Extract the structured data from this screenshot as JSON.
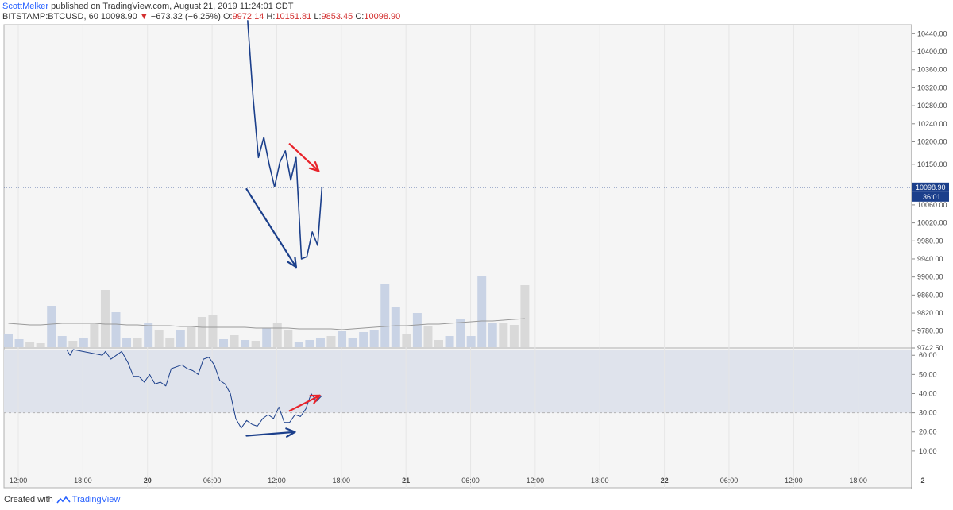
{
  "header": {
    "author": "ScottMelker",
    "published": " published on TradingView.com, August 21, 2019 11:24:01 CDT",
    "symbol": "BITSTAMP:BTCUSD, 60",
    "last": "10098.90",
    "change_arrow": "▼",
    "change": "−673.32 (−6.25%)",
    "o_label": "O:",
    "o_value": "9972.14",
    "h_label": "H:",
    "h_value": "10151.81",
    "l_label": "L:",
    "l_value": "9853.45",
    "c_label": "C:",
    "c_value": "10098.90"
  },
  "footer": {
    "created_with": "Created with",
    "brand": "TradingView"
  },
  "colors": {
    "price": "#1b3f8b",
    "red": "#e8232a",
    "grid": "#e6e6e6",
    "vol_up": "#c9d3e5",
    "vol_down": "#d9d9d9"
  },
  "chart_data": [
    {
      "type": "line",
      "title": "BITSTAMP:BTCUSD, 60",
      "y_ticks": [
        "10440.00",
        "10400.00",
        "10360.00",
        "10320.00",
        "10280.00",
        "10240.00",
        "10200.00",
        "10150.00",
        "10060.00",
        "10020.00",
        "9980.00",
        "9940.00",
        "9900.00",
        "9860.00",
        "9820.00",
        "9780.00",
        "9742.50"
      ],
      "y_tick_values": [
        10440,
        10400,
        10360,
        10320,
        10280,
        10240,
        10200,
        10150,
        10060,
        10020,
        9980,
        9940,
        9900,
        9860,
        9820,
        9780,
        9742.5
      ],
      "last_price_label": "10098.90",
      "last_price": 10098.9,
      "countdown_label": "36:01",
      "ylim": [
        9742.5,
        10460
      ],
      "x": [
        21.3,
        21.8,
        22.3,
        22.8,
        23.3,
        23.8,
        24.3,
        24.8,
        25.3,
        25.8,
        26.3,
        26.8,
        27.3,
        27.8
      ],
      "values": [
        10470,
        10300,
        10165,
        10210,
        10150,
        10100,
        10155,
        10180,
        10115,
        10165,
        9940,
        9945,
        10000,
        9970
      ],
      "last_x": 28.2,
      "annotations": [
        {
          "type": "arrow",
          "color": "red",
          "from": [
            25.2,
            10195
          ],
          "to": [
            27.9,
            10135
          ]
        },
        {
          "type": "arrow",
          "color": "blue",
          "from": [
            21.2,
            10095
          ],
          "to": [
            25.8,
            9922
          ]
        }
      ],
      "volume": {
        "values": [
          16,
          10,
          6,
          5,
          52,
          14,
          8,
          12,
          29,
          72,
          44,
          11,
          12,
          31,
          21,
          11,
          21,
          25,
          38,
          40,
          10,
          15,
          9,
          8,
          24,
          31,
          22,
          6,
          9,
          11,
          14,
          20,
          12,
          19,
          21,
          80,
          51,
          17,
          43,
          27,
          9,
          14,
          36,
          14,
          90,
          31,
          30,
          28,
          78
        ],
        "up": [
          true,
          true,
          false,
          false,
          true,
          true,
          false,
          true,
          false,
          false,
          true,
          true,
          false,
          true,
          false,
          false,
          true,
          false,
          false,
          false,
          true,
          false,
          true,
          false,
          true,
          false,
          false,
          true,
          true,
          true,
          false,
          true,
          true,
          true,
          true,
          true,
          true,
          false,
          true,
          false,
          false,
          true,
          true,
          true,
          true,
          true,
          false,
          false,
          false
        ],
        "ma": [
          30,
          29,
          28,
          28,
          29,
          30,
          30,
          30,
          30,
          29,
          29,
          28,
          28,
          27,
          27,
          27,
          26,
          26,
          25,
          25,
          25,
          25,
          25,
          24,
          24,
          24,
          24,
          23,
          23,
          23,
          23,
          22,
          23,
          24,
          25,
          26,
          27,
          27,
          28,
          29,
          29,
          30,
          31,
          32,
          33,
          33,
          34,
          35,
          36
        ],
        "max": 100
      }
    },
    {
      "type": "line",
      "title": "RSI",
      "y_ticks": [
        "60.00",
        "50.00",
        "40.00",
        "30.00",
        "20.00",
        "10.00"
      ],
      "y_tick_values": [
        60,
        50,
        40,
        30,
        20,
        10
      ],
      "ylim": [
        0,
        63
      ],
      "band": [
        30,
        63
      ],
      "x": [
        4.5,
        4.8,
        5.1,
        7.8,
        8.1,
        8.6,
        9.1,
        9.6,
        10.2,
        10.7,
        11.2,
        11.7,
        12.2,
        12.7,
        13.2,
        13.7,
        14.2,
        14.7,
        15.2,
        15.7,
        16.2,
        16.7,
        17.2,
        17.7,
        18.2,
        18.7,
        19.2,
        19.7,
        20.2,
        20.7,
        21.2,
        21.7,
        22.2,
        22.7,
        23.2,
        23.7,
        24.2,
        24.7,
        25.2,
        25.7,
        26.2,
        26.7,
        27.2,
        27.7,
        28.2
      ],
      "values": [
        63,
        60,
        63,
        60,
        62,
        58,
        60,
        62,
        56,
        49,
        49,
        46,
        50,
        45,
        46,
        44,
        53,
        54,
        55,
        53,
        52,
        50,
        58,
        59,
        55,
        47,
        45,
        40,
        27,
        22,
        26,
        24,
        23,
        27,
        29,
        27,
        33,
        25,
        25,
        29,
        28,
        32,
        40,
        36,
        39
      ],
      "annotations": [
        {
          "type": "arrow",
          "color": "red",
          "from": [
            25.2,
            31
          ],
          "to": [
            28.0,
            39
          ]
        },
        {
          "type": "arrow",
          "color": "blue",
          "from": [
            21.2,
            18
          ],
          "to": [
            25.7,
            20
          ]
        }
      ]
    }
  ],
  "x_axis": {
    "ticks": [
      "12:00",
      "18:00",
      "20",
      "06:00",
      "12:00",
      "18:00",
      "21",
      "06:00",
      "12:00",
      "18:00",
      "22",
      "06:00",
      "12:00",
      "18:00",
      "2"
    ],
    "tick_hours": [
      0,
      6,
      12,
      18,
      24,
      30,
      36,
      42,
      48,
      54,
      60,
      66,
      72,
      78,
      84
    ]
  }
}
